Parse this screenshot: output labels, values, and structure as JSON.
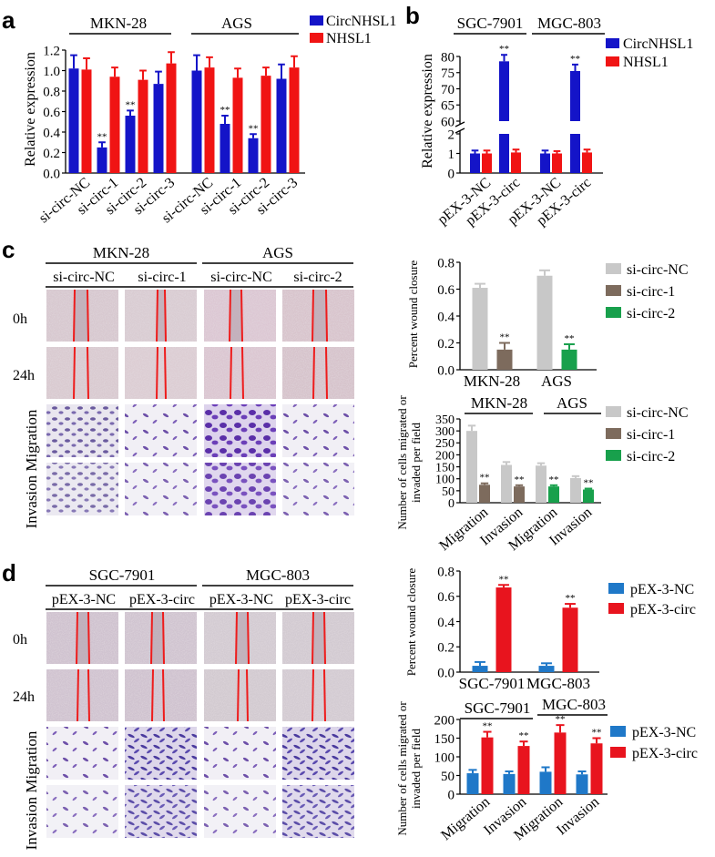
{
  "colors": {
    "blue": "#1414c8",
    "red": "#f01414",
    "gray": "#c8c8c8",
    "brown": "#7d6b5d",
    "green": "#18a04c",
    "mblue": "#1f78c8",
    "mred": "#e8141e"
  },
  "panels": {
    "a": "a",
    "b": "b",
    "c": "c",
    "d": "d"
  },
  "rows": {
    "h0": "0h",
    "h24": "24h",
    "invasion_migration": "Invasion Migration"
  },
  "star": "**",
  "a": {
    "groups": [
      "MKN-28",
      "AGS"
    ],
    "legend": [
      "CircNHSL1",
      "NHSL1"
    ],
    "ylabel": "Relative expression",
    "yticks": [
      "0.0",
      "0.2",
      "0.4",
      "0.6",
      "0.8",
      "1.0",
      "1.2"
    ],
    "categories": [
      "si-circ-NC",
      "si-circ-1",
      "si-circ-2",
      "si-circ-3",
      "si-circ-NC",
      "si-circ-1",
      "si-circ-2",
      "si-circ-3"
    ]
  },
  "b": {
    "groups": [
      "SGC-7901",
      "MGC-803"
    ],
    "legend": [
      "CircNHSL1",
      "NHSL1"
    ],
    "ylabel": "Relative expression",
    "yticks_low": [
      "0",
      "1",
      "2"
    ],
    "yticks_high": [
      "60",
      "65",
      "70",
      "75",
      "80"
    ],
    "categories": [
      "pEX-3-NC",
      "pEX-3-circ",
      "pEX-3-NC",
      "pEX-3-circ"
    ]
  },
  "c": {
    "groups": [
      "MKN-28",
      "AGS"
    ],
    "columns": [
      "si-circ-NC",
      "si-circ-1",
      "si-circ-NC",
      "si-circ-2"
    ],
    "legend": [
      "si-circ-NC",
      "si-circ-1",
      "si-circ-2"
    ],
    "wound": {
      "ylabel": "Percent wound closure",
      "yticks": [
        "0.0",
        "0.2",
        "0.4",
        "0.6",
        "0.8"
      ],
      "categories": [
        "MKN-28",
        "AGS"
      ]
    },
    "mig": {
      "ylabel1": "Number of cells migrated or",
      "ylabel2": "invaded per field",
      "groups": [
        "MKN-28",
        "AGS"
      ],
      "yticks": [
        "0",
        "50",
        "100",
        "150",
        "200",
        "250",
        "300",
        "350"
      ],
      "categories": [
        "Migration",
        "Invasion",
        "Migration",
        "Invasion"
      ]
    }
  },
  "d": {
    "groups": [
      "SGC-7901",
      "MGC-803"
    ],
    "columns": [
      "pEX-3-NC",
      "pEX-3-circ",
      "pEX-3-NC",
      "pEX-3-circ"
    ],
    "legend": [
      "pEX-3-NC",
      "pEX-3-circ"
    ],
    "wound": {
      "ylabel": "Percent wound closure",
      "yticks": [
        "0.0",
        "0.2",
        "0.4",
        "0.6",
        "0.8"
      ],
      "categories": [
        "SGC-7901",
        "MGC-803"
      ]
    },
    "mig": {
      "ylabel1": "Number of cells migrated or",
      "ylabel2": "invaded per field",
      "groups": [
        "SGC-7901",
        "MGC-803"
      ],
      "yticks": [
        "0",
        "50",
        "100",
        "150",
        "200"
      ],
      "categories": [
        "Migration",
        "Invasion",
        "Migration",
        "Invasion"
      ]
    }
  },
  "chart_data": [
    {
      "type": "bar",
      "categories": [
        "si-circ-NC",
        "si-circ-1",
        "si-circ-2",
        "si-circ-3",
        "si-circ-NC",
        "si-circ-1",
        "si-circ-2",
        "si-circ-3"
      ],
      "series": [
        {
          "name": "CircNHSL1",
          "values": [
            1.02,
            0.25,
            0.56,
            0.87,
            1.0,
            0.48,
            0.34,
            0.92
          ],
          "errors": [
            0.13,
            0.05,
            0.05,
            0.12,
            0.15,
            0.08,
            0.04,
            0.14
          ]
        },
        {
          "name": "NHSL1",
          "values": [
            1.01,
            0.94,
            0.91,
            1.07,
            1.03,
            0.93,
            0.95,
            1.03
          ],
          "errors": [
            0.11,
            0.09,
            0.09,
            0.11,
            0.1,
            0.09,
            0.08,
            0.11
          ]
        }
      ],
      "ylabel": "Relative expression",
      "ylim": [
        0,
        1.2
      ]
    },
    {
      "type": "bar",
      "categories": [
        "pEX-3-NC",
        "pEX-3-circ",
        "pEX-3-NC",
        "pEX-3-circ"
      ],
      "series": [
        {
          "name": "CircNHSL1",
          "values": [
            1.0,
            78.5,
            1.0,
            75.5
          ],
          "errors": [
            0.15,
            2.0,
            0.15,
            2.0
          ]
        },
        {
          "name": "NHSL1",
          "values": [
            1.0,
            1.05,
            1.0,
            1.05
          ],
          "errors": [
            0.15,
            0.15,
            0.12,
            0.15
          ]
        }
      ],
      "ylabel": "Relative expression",
      "axis_break": [
        2,
        60
      ]
    },
    {
      "type": "bar",
      "categories": [
        "MKN-28",
        "AGS"
      ],
      "series": [
        {
          "name": "si-circ-NC",
          "values": [
            0.61,
            0.7
          ],
          "errors": [
            0.03,
            0.04
          ]
        },
        {
          "name": "si-circ-1",
          "values": [
            0.15,
            null
          ],
          "errors": [
            0.05,
            null
          ]
        },
        {
          "name": "si-circ-2",
          "values": [
            null,
            0.15
          ],
          "errors": [
            null,
            0.04
          ]
        }
      ],
      "ylabel": "Percent wound closure",
      "ylim": [
        0,
        0.8
      ]
    },
    {
      "type": "bar",
      "categories": [
        "Migration",
        "Invasion",
        "Migration",
        "Invasion"
      ],
      "series": [
        {
          "name": "si-circ-NC",
          "values": [
            300,
            158,
            155,
            103
          ],
          "errors": [
            22,
            12,
            10,
            8
          ]
        },
        {
          "name": "si-circ-1",
          "values": [
            75,
            68,
            null,
            null
          ],
          "errors": [
            6,
            5,
            null,
            null
          ]
        },
        {
          "name": "si-circ-2",
          "values": [
            null,
            null,
            68,
            55
          ],
          "errors": [
            null,
            null,
            5,
            4
          ]
        }
      ],
      "ylabel": "Number of cells migrated or invaded per field",
      "ylim": [
        0,
        350
      ]
    },
    {
      "type": "bar",
      "categories": [
        "SGC-7901",
        "MGC-803"
      ],
      "series": [
        {
          "name": "pEX-3-NC",
          "values": [
            0.05,
            0.05
          ],
          "errors": [
            0.03,
            0.02
          ]
        },
        {
          "name": "pEX-3-circ",
          "values": [
            0.67,
            0.51
          ],
          "errors": [
            0.02,
            0.03
          ]
        }
      ],
      "ylabel": "Percent wound closure",
      "ylim": [
        0,
        0.8
      ]
    },
    {
      "type": "bar",
      "categories": [
        "Migration",
        "Invasion",
        "Migration",
        "Invasion"
      ],
      "series": [
        {
          "name": "pEX-3-NC",
          "values": [
            56,
            54,
            60,
            53
          ],
          "errors": [
            9,
            7,
            12,
            8
          ]
        },
        {
          "name": "pEX-3-circ",
          "values": [
            152,
            129,
            165,
            136
          ],
          "errors": [
            15,
            12,
            20,
            14
          ]
        }
      ],
      "ylabel": "Number of cells migrated or invaded per field",
      "ylim": [
        0,
        200
      ]
    }
  ]
}
